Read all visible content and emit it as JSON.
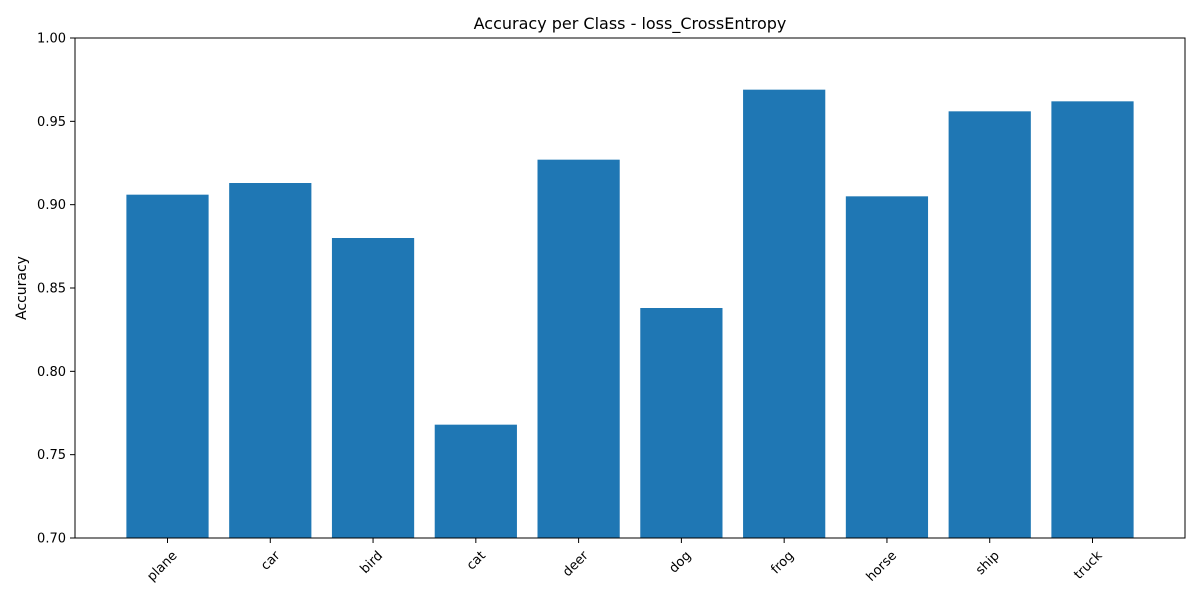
{
  "chart_data": {
    "type": "bar",
    "title": "Accuracy per Class - loss_CrossEntropy",
    "xlabel": "",
    "ylabel": "Accuracy",
    "categories": [
      "plane",
      "car",
      "bird",
      "cat",
      "deer",
      "dog",
      "frog",
      "horse",
      "ship",
      "truck"
    ],
    "values": [
      0.906,
      0.913,
      0.88,
      0.768,
      0.927,
      0.838,
      0.969,
      0.905,
      0.956,
      0.962
    ],
    "ylim": [
      0.7,
      1.0
    ],
    "yticks": [
      "0.70",
      "0.75",
      "0.80",
      "0.85",
      "0.90",
      "0.95",
      "1.00"
    ],
    "grid": false,
    "legend": "none",
    "bar_color": "#1f77b4",
    "x_tick_rotation": "45"
  }
}
